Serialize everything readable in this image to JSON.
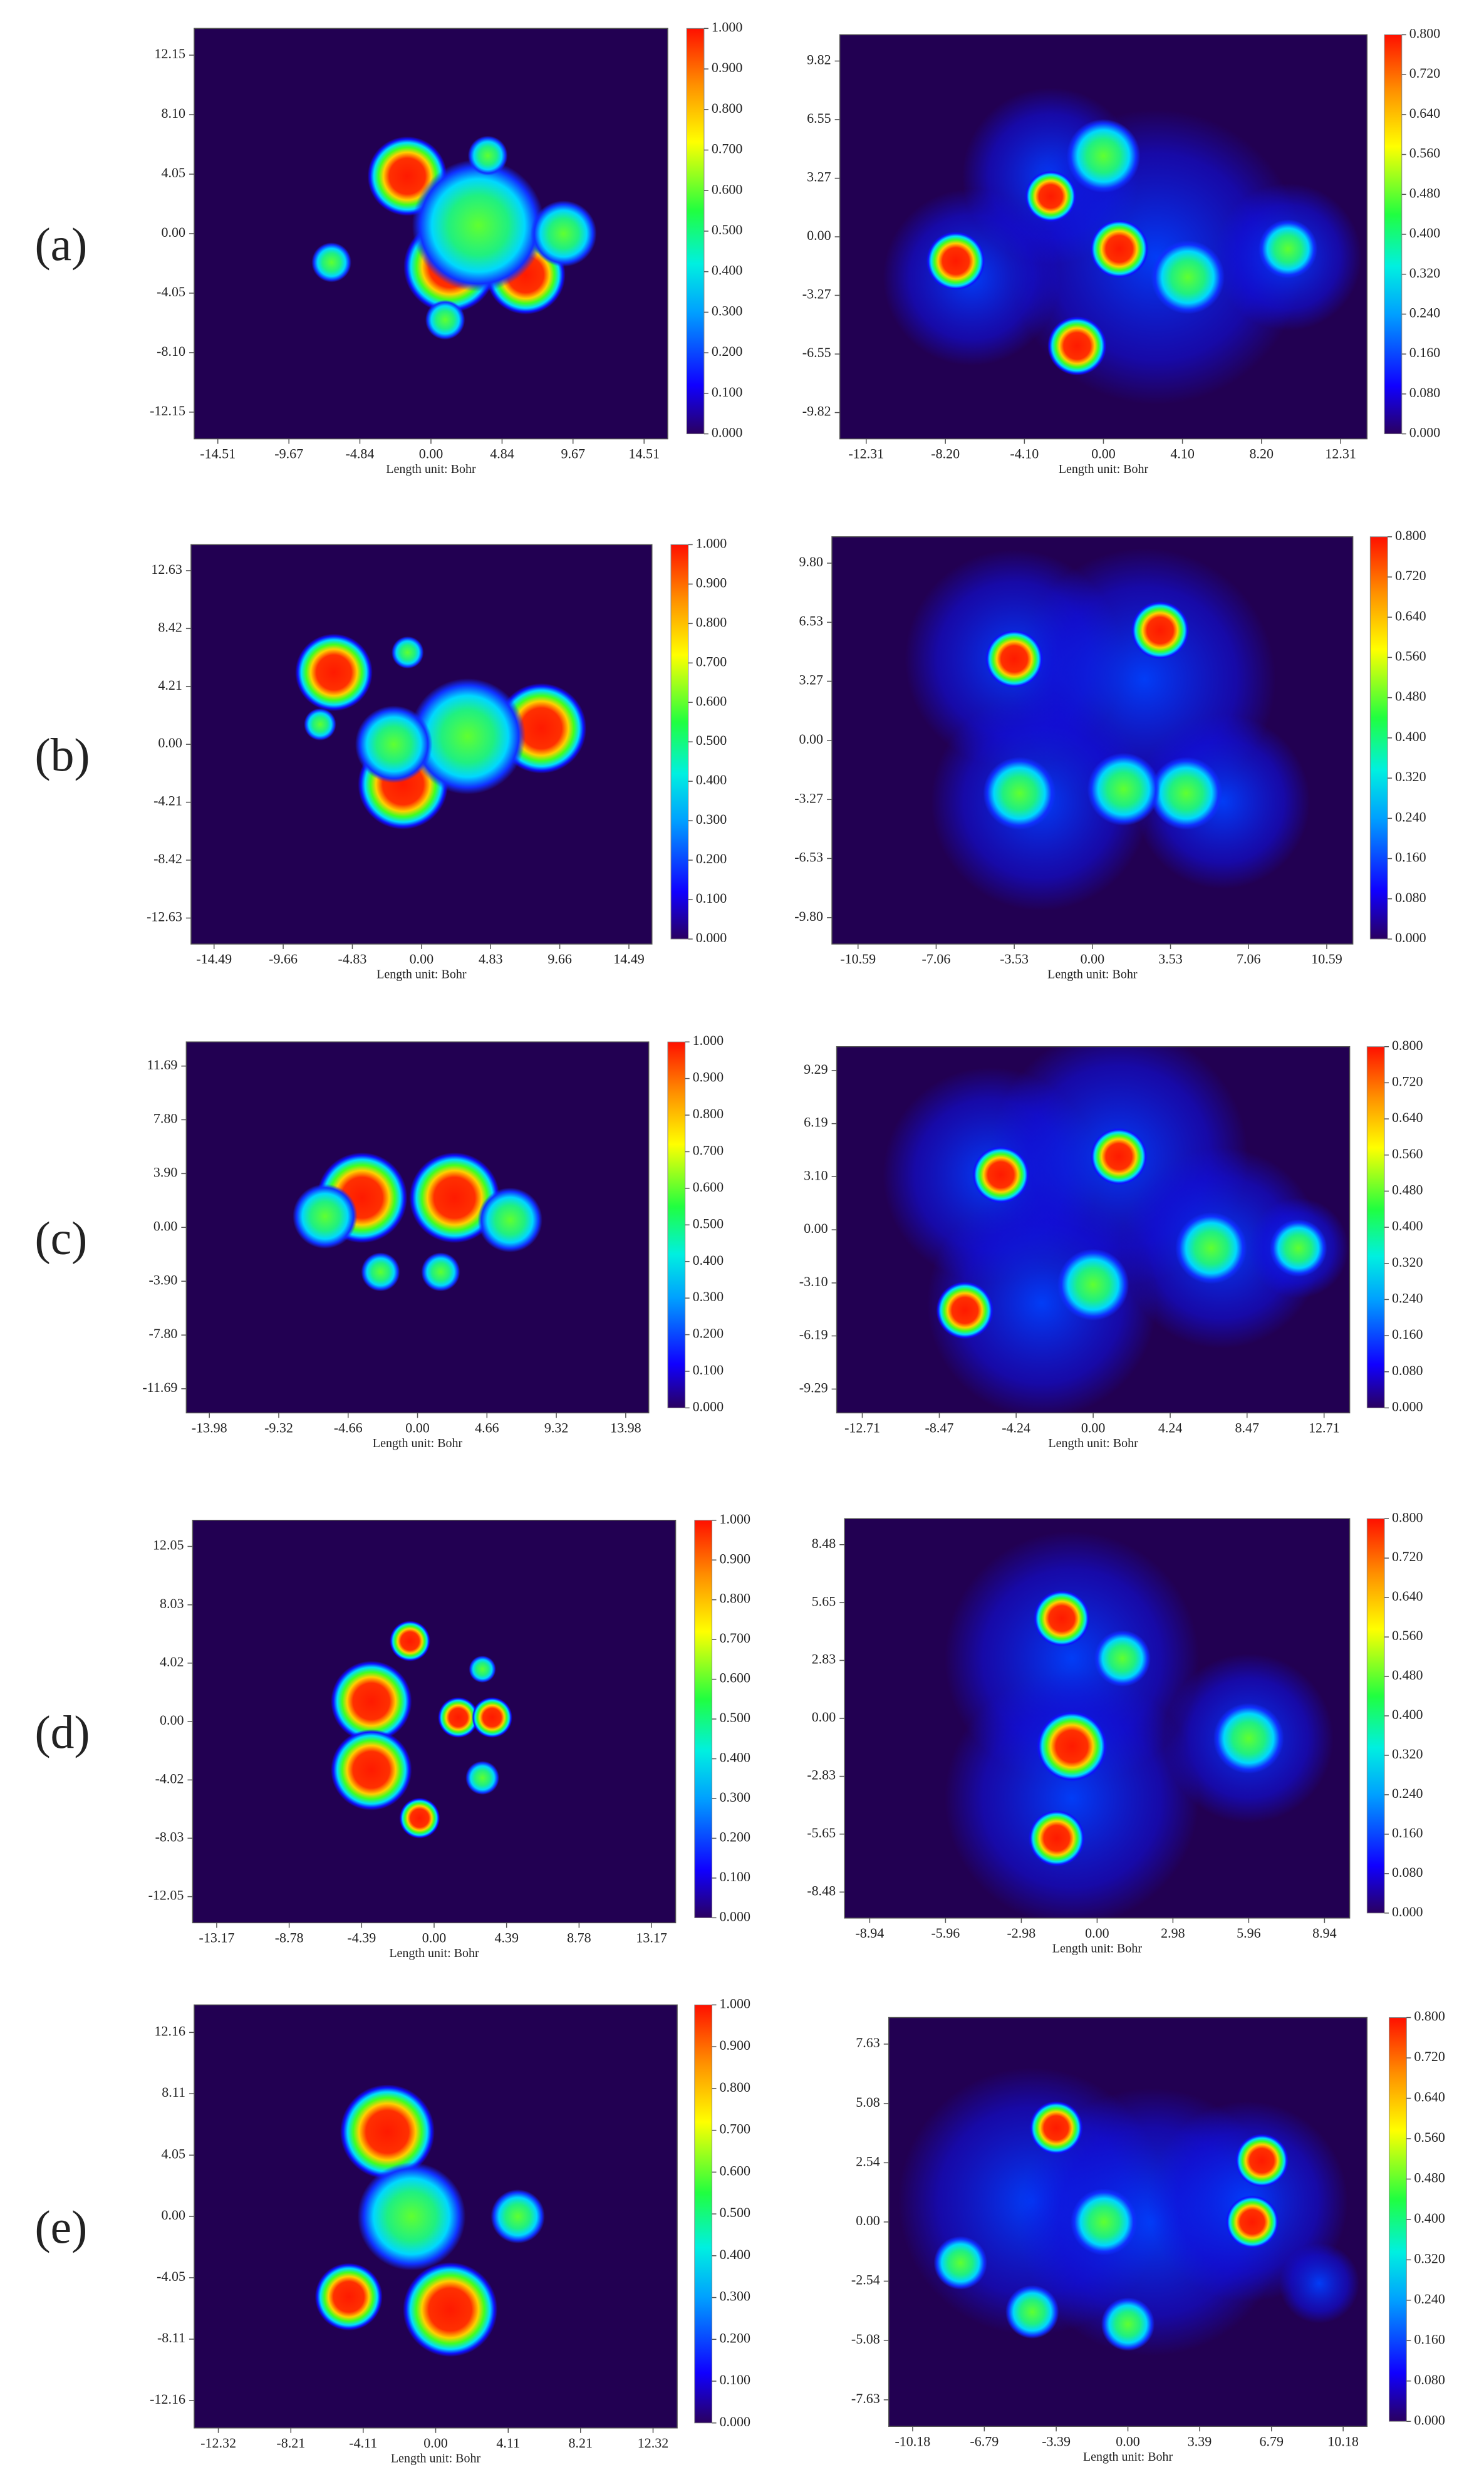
{
  "panel_labels": [
    "(a)",
    "(b)",
    "(c)",
    "(d)",
    "(e)"
  ],
  "chart_data": [
    {
      "type": "heatmap",
      "x_label": "Length unit: Bohr",
      "xlim": [
        -16.12,
        16.12
      ],
      "ylim": [
        -13.97,
        13.97
      ],
      "xticks": [
        -14.51,
        -9.67,
        -4.84,
        {
          "value": 0,
          "label": "0.00"
        },
        4.84,
        9.67,
        14.51
      ],
      "yticks": [
        12.15,
        {
          "value": 8.1,
          "label": "8.10"
        },
        4.05,
        {
          "value": 0,
          "label": "0.00"
        },
        -4.05,
        {
          "value": -8.1,
          "label": "-8.10"
        },
        -12.15
      ],
      "colorbar": {
        "lim": [
          0,
          1
        ],
        "ticks": [
          {
            "value": 0,
            "label": "0.000"
          },
          {
            "value": 0.1,
            "label": "0.100"
          },
          {
            "value": 0.2,
            "label": "0.200"
          },
          {
            "value": 0.3,
            "label": "0.300"
          },
          {
            "value": 0.4,
            "label": "0.400"
          },
          {
            "value": 0.5,
            "label": "0.500"
          },
          {
            "value": 0.6,
            "label": "0.600"
          },
          {
            "value": 0.7,
            "label": "0.700"
          },
          {
            "value": 0.8,
            "label": "0.800"
          },
          {
            "value": 0.9,
            "label": "0.900"
          },
          {
            "value": 1,
            "label": "1.000"
          }
        ]
      }
    },
    {
      "type": "heatmap",
      "x_label": "Length unit: Bohr",
      "xlim": [
        -13.68,
        13.68
      ],
      "ylim": [
        -11.29,
        11.29
      ],
      "xticks": [
        -12.31,
        {
          "value": -8.2,
          "label": "-8.20"
        },
        {
          "value": -4.1,
          "label": "-4.10"
        },
        {
          "value": 0,
          "label": "0.00"
        },
        {
          "value": 4.1,
          "label": "4.10"
        },
        {
          "value": 8.2,
          "label": "8.20"
        },
        12.31
      ],
      "yticks": [
        9.82,
        6.55,
        3.27,
        {
          "value": 0,
          "label": "0.00"
        },
        -3.27,
        -6.55,
        -9.82
      ],
      "colorbar": {
        "lim": [
          0,
          0.8
        ],
        "ticks": [
          {
            "value": 0,
            "label": "0.000"
          },
          {
            "value": 0.08,
            "label": "0.080"
          },
          {
            "value": 0.16,
            "label": "0.160"
          },
          {
            "value": 0.24,
            "label": "0.240"
          },
          {
            "value": 0.32,
            "label": "0.320"
          },
          {
            "value": 0.4,
            "label": "0.400"
          },
          {
            "value": 0.48,
            "label": "0.480"
          },
          {
            "value": 0.56,
            "label": "0.560"
          },
          {
            "value": 0.64,
            "label": "0.640"
          },
          {
            "value": 0.72,
            "label": "0.720"
          },
          {
            "value": 0.8,
            "label": "0.800"
          }
        ]
      }
    },
    {
      "type": "heatmap",
      "x_label": "Length unit: Bohr",
      "xlim": [
        -16.1,
        16.1
      ],
      "ylim": [
        -14.52,
        14.52
      ],
      "xticks": [
        -14.49,
        -9.66,
        -4.83,
        {
          "value": 0,
          "label": "0.00"
        },
        4.83,
        9.66,
        14.49
      ],
      "yticks": [
        12.63,
        8.42,
        4.21,
        {
          "value": 0,
          "label": "0.00"
        },
        -4.21,
        -8.42,
        -12.63
      ],
      "colorbar": {
        "lim": [
          0,
          1
        ],
        "ticks": [
          {
            "value": 0,
            "label": "0.000"
          },
          {
            "value": 0.1,
            "label": "0.100"
          },
          {
            "value": 0.2,
            "label": "0.200"
          },
          {
            "value": 0.3,
            "label": "0.300"
          },
          {
            "value": 0.4,
            "label": "0.400"
          },
          {
            "value": 0.5,
            "label": "0.500"
          },
          {
            "value": 0.6,
            "label": "0.600"
          },
          {
            "value": 0.7,
            "label": "0.700"
          },
          {
            "value": 0.8,
            "label": "0.800"
          },
          {
            "value": 0.9,
            "label": "0.900"
          },
          {
            "value": 1,
            "label": "1.000"
          }
        ]
      }
    },
    {
      "type": "heatmap",
      "x_label": "Length unit: Bohr",
      "xlim": [
        -11.77,
        11.77
      ],
      "ylim": [
        -11.26,
        11.26
      ],
      "xticks": [
        -10.59,
        -7.06,
        -3.53,
        {
          "value": 0,
          "label": "0.00"
        },
        3.53,
        7.06,
        10.59
      ],
      "yticks": [
        {
          "value": 9.8,
          "label": "9.80"
        },
        6.53,
        3.27,
        {
          "value": 0,
          "label": "0.00"
        },
        -3.27,
        -6.53,
        {
          "value": -9.8,
          "label": "-9.80"
        }
      ],
      "colorbar": {
        "lim": [
          0,
          0.8
        ],
        "ticks": [
          {
            "value": 0,
            "label": "0.000"
          },
          {
            "value": 0.08,
            "label": "0.080"
          },
          {
            "value": 0.16,
            "label": "0.160"
          },
          {
            "value": 0.24,
            "label": "0.240"
          },
          {
            "value": 0.32,
            "label": "0.320"
          },
          {
            "value": 0.4,
            "label": "0.400"
          },
          {
            "value": 0.48,
            "label": "0.480"
          },
          {
            "value": 0.56,
            "label": "0.560"
          },
          {
            "value": 0.64,
            "label": "0.640"
          },
          {
            "value": 0.72,
            "label": "0.720"
          },
          {
            "value": 0.8,
            "label": "0.800"
          }
        ]
      }
    },
    {
      "type": "heatmap",
      "x_label": "Length unit: Bohr",
      "xlim": [
        -15.53,
        15.53
      ],
      "ylim": [
        -13.44,
        13.44
      ],
      "xticks": [
        -13.98,
        -9.32,
        -4.66,
        {
          "value": 0,
          "label": "0.00"
        },
        4.66,
        9.32,
        13.98
      ],
      "yticks": [
        11.69,
        {
          "value": 7.8,
          "label": "7.80"
        },
        {
          "value": 3.9,
          "label": "3.90"
        },
        {
          "value": 0,
          "label": "0.00"
        },
        {
          "value": -3.9,
          "label": "-3.90"
        },
        {
          "value": -7.8,
          "label": "-7.80"
        },
        -11.69
      ],
      "colorbar": {
        "lim": [
          0,
          1
        ],
        "ticks": [
          {
            "value": 0,
            "label": "0.000"
          },
          {
            "value": 0.1,
            "label": "0.100"
          },
          {
            "value": 0.2,
            "label": "0.200"
          },
          {
            "value": 0.3,
            "label": "0.300"
          },
          {
            "value": 0.4,
            "label": "0.400"
          },
          {
            "value": 0.5,
            "label": "0.500"
          },
          {
            "value": 0.6,
            "label": "0.600"
          },
          {
            "value": 0.7,
            "label": "0.700"
          },
          {
            "value": 0.8,
            "label": "0.800"
          },
          {
            "value": 0.9,
            "label": "0.900"
          },
          {
            "value": 1,
            "label": "1.000"
          }
        ]
      }
    },
    {
      "type": "heatmap",
      "x_label": "Length unit: Bohr",
      "xlim": [
        -14.12,
        14.12
      ],
      "ylim": [
        -10.68,
        10.68
      ],
      "xticks": [
        -12.71,
        -8.47,
        -4.24,
        {
          "value": 0,
          "label": "0.00"
        },
        4.24,
        8.47,
        12.71
      ],
      "yticks": [
        9.29,
        6.19,
        {
          "value": 3.1,
          "label": "3.10"
        },
        {
          "value": 0,
          "label": "0.00"
        },
        {
          "value": -3.1,
          "label": "-3.10"
        },
        -6.19,
        -9.29
      ],
      "colorbar": {
        "lim": [
          0,
          0.8
        ],
        "ticks": [
          {
            "value": 0,
            "label": "0.000"
          },
          {
            "value": 0.08,
            "label": "0.080"
          },
          {
            "value": 0.16,
            "label": "0.160"
          },
          {
            "value": 0.24,
            "label": "0.240"
          },
          {
            "value": 0.32,
            "label": "0.320"
          },
          {
            "value": 0.4,
            "label": "0.400"
          },
          {
            "value": 0.48,
            "label": "0.480"
          },
          {
            "value": 0.56,
            "label": "0.560"
          },
          {
            "value": 0.64,
            "label": "0.640"
          },
          {
            "value": 0.72,
            "label": "0.720"
          },
          {
            "value": 0.8,
            "label": "0.800"
          }
        ]
      }
    },
    {
      "type": "heatmap",
      "x_label": "Length unit: Bohr",
      "xlim": [
        -14.63,
        14.63
      ],
      "ylim": [
        -13.85,
        13.85
      ],
      "xticks": [
        -13.17,
        -8.78,
        -4.39,
        {
          "value": 0,
          "label": "0.00"
        },
        4.39,
        8.78,
        13.17
      ],
      "yticks": [
        12.05,
        8.03,
        4.02,
        {
          "value": 0,
          "label": "0.00"
        },
        -4.02,
        -8.03,
        -12.05
      ],
      "colorbar": {
        "lim": [
          0,
          1
        ],
        "ticks": [
          {
            "value": 0,
            "label": "0.000"
          },
          {
            "value": 0.1,
            "label": "0.100"
          },
          {
            "value": 0.2,
            "label": "0.200"
          },
          {
            "value": 0.3,
            "label": "0.300"
          },
          {
            "value": 0.4,
            "label": "0.400"
          },
          {
            "value": 0.5,
            "label": "0.500"
          },
          {
            "value": 0.6,
            "label": "0.600"
          },
          {
            "value": 0.7,
            "label": "0.700"
          },
          {
            "value": 0.8,
            "label": "0.800"
          },
          {
            "value": 0.9,
            "label": "0.900"
          },
          {
            "value": 1,
            "label": "1.000"
          }
        ]
      }
    },
    {
      "type": "heatmap",
      "x_label": "Length unit: Bohr",
      "xlim": [
        -9.93,
        9.93
      ],
      "ylim": [
        -9.75,
        9.75
      ],
      "xticks": [
        -8.94,
        -5.96,
        -2.98,
        {
          "value": 0,
          "label": "0.00"
        },
        2.98,
        5.96,
        8.94
      ],
      "yticks": [
        8.48,
        5.65,
        2.83,
        {
          "value": 0,
          "label": "0.00"
        },
        -2.83,
        -5.65,
        -8.48
      ],
      "colorbar": {
        "lim": [
          0,
          0.8
        ],
        "ticks": [
          {
            "value": 0,
            "label": "0.000"
          },
          {
            "value": 0.08,
            "label": "0.080"
          },
          {
            "value": 0.16,
            "label": "0.160"
          },
          {
            "value": 0.24,
            "label": "0.240"
          },
          {
            "value": 0.32,
            "label": "0.320"
          },
          {
            "value": 0.4,
            "label": "0.400"
          },
          {
            "value": 0.48,
            "label": "0.480"
          },
          {
            "value": 0.56,
            "label": "0.560"
          },
          {
            "value": 0.64,
            "label": "0.640"
          },
          {
            "value": 0.72,
            "label": "0.720"
          },
          {
            "value": 0.8,
            "label": "0.800"
          }
        ]
      }
    },
    {
      "type": "heatmap",
      "x_label": "Length unit: Bohr",
      "xlim": [
        -13.69,
        13.69
      ],
      "ylim": [
        -13.98,
        13.98
      ],
      "xticks": [
        -12.32,
        -8.21,
        -4.11,
        {
          "value": 0,
          "label": "0.00"
        },
        4.11,
        8.21,
        12.32
      ],
      "yticks": [
        12.16,
        8.11,
        4.05,
        {
          "value": 0,
          "label": "0.00"
        },
        -4.05,
        -8.11,
        -12.16
      ],
      "colorbar": {
        "lim": [
          0,
          1
        ],
        "ticks": [
          {
            "value": 0,
            "label": "0.000"
          },
          {
            "value": 0.1,
            "label": "0.100"
          },
          {
            "value": 0.2,
            "label": "0.200"
          },
          {
            "value": 0.3,
            "label": "0.300"
          },
          {
            "value": 0.4,
            "label": "0.400"
          },
          {
            "value": 0.5,
            "label": "0.500"
          },
          {
            "value": 0.6,
            "label": "0.600"
          },
          {
            "value": 0.7,
            "label": "0.700"
          },
          {
            "value": 0.8,
            "label": "0.800"
          },
          {
            "value": 0.9,
            "label": "0.900"
          },
          {
            "value": 1,
            "label": "1.000"
          }
        ]
      }
    },
    {
      "type": "heatmap",
      "x_label": "Length unit: Bohr",
      "xlim": [
        -11.31,
        11.31
      ],
      "ylim": [
        -8.77,
        8.77
      ],
      "xticks": [
        -10.18,
        -6.79,
        -3.39,
        {
          "value": 0,
          "label": "0.00"
        },
        3.39,
        6.79,
        10.18
      ],
      "yticks": [
        7.63,
        5.08,
        2.54,
        {
          "value": 0,
          "label": "0.00"
        },
        -2.54,
        -5.08,
        -7.63
      ],
      "colorbar": {
        "lim": [
          0,
          0.8
        ],
        "ticks": [
          {
            "value": 0,
            "label": "0.000"
          },
          {
            "value": 0.08,
            "label": "0.080"
          },
          {
            "value": 0.16,
            "label": "0.160"
          },
          {
            "value": 0.24,
            "label": "0.240"
          },
          {
            "value": 0.32,
            "label": "0.320"
          },
          {
            "value": 0.4,
            "label": "0.400"
          },
          {
            "value": 0.48,
            "label": "0.480"
          },
          {
            "value": 0.56,
            "label": "0.560"
          },
          {
            "value": 0.64,
            "label": "0.640"
          },
          {
            "value": 0.72,
            "label": "0.720"
          },
          {
            "value": 0.8,
            "label": "0.800"
          }
        ]
      }
    }
  ]
}
